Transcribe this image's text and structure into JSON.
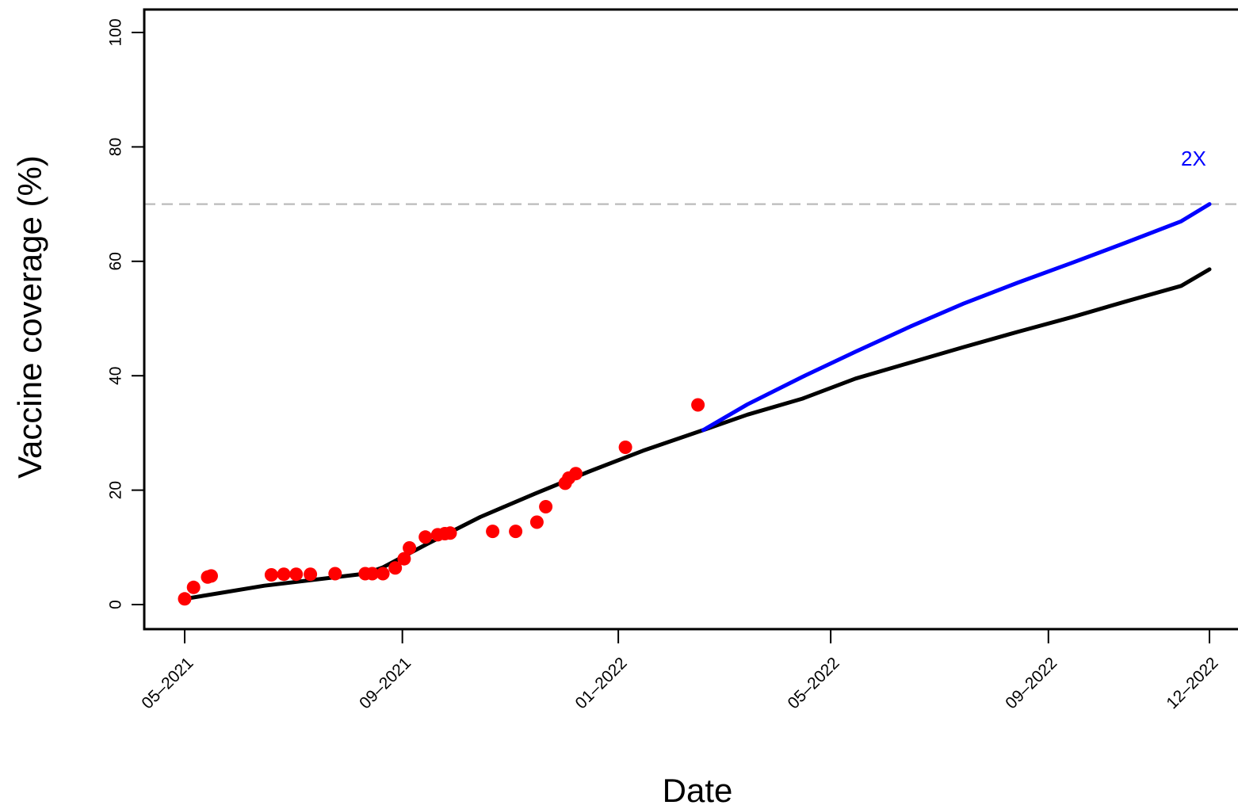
{
  "chart_data": {
    "type": "line",
    "title": "",
    "xlabel": "Date",
    "ylabel": "Vaccine coverage (%)",
    "ylim": [
      0,
      100
    ],
    "xlim": [
      "2021-05-01",
      "2022-12-01"
    ],
    "grid": false,
    "colors": {
      "points": "#ff0000",
      "baseline": "#000000",
      "projection": "#0000ff",
      "threshold": "#bbbbbb"
    },
    "x_tick_labels": [
      "05–2021",
      "09–2021",
      "01–2022",
      "05–2022",
      "09–2022",
      "12–2022"
    ],
    "x_tick_dates": [
      "2021-05-01",
      "2021-09-01",
      "2022-01-01",
      "2022-05-01",
      "2022-09-01",
      "2022-12-01"
    ],
    "y_tick_labels": [
      "0",
      "20",
      "40",
      "60",
      "80",
      "100"
    ],
    "y_ticks": [
      0,
      20,
      40,
      60,
      80,
      100
    ],
    "threshold": {
      "y": 70,
      "style": "dashed"
    },
    "annotations": [
      {
        "text": "2X",
        "x": "2022-11-22",
        "y": 78,
        "color": "#0000ff"
      }
    ],
    "series": [
      {
        "type": "scatter",
        "color": "#ff0000",
        "points": [
          {
            "x": "2021-05-01",
            "y": 1.0
          },
          {
            "x": "2021-05-06",
            "y": 3.0
          },
          {
            "x": "2021-05-14",
            "y": 4.8
          },
          {
            "x": "2021-05-16",
            "y": 5.0
          },
          {
            "x": "2021-06-19",
            "y": 5.2
          },
          {
            "x": "2021-06-26",
            "y": 5.3
          },
          {
            "x": "2021-07-03",
            "y": 5.3
          },
          {
            "x": "2021-07-11",
            "y": 5.3
          },
          {
            "x": "2021-07-25",
            "y": 5.4
          },
          {
            "x": "2021-08-11",
            "y": 5.4
          },
          {
            "x": "2021-08-15",
            "y": 5.4
          },
          {
            "x": "2021-08-21",
            "y": 5.4
          },
          {
            "x": "2021-08-28",
            "y": 6.4
          },
          {
            "x": "2021-09-02",
            "y": 8.0
          },
          {
            "x": "2021-09-05",
            "y": 9.9
          },
          {
            "x": "2021-09-14",
            "y": 11.8
          },
          {
            "x": "2021-09-21",
            "y": 12.2
          },
          {
            "x": "2021-09-25",
            "y": 12.4
          },
          {
            "x": "2021-09-28",
            "y": 12.5
          },
          {
            "x": "2021-10-22",
            "y": 12.8
          },
          {
            "x": "2021-11-04",
            "y": 12.8
          },
          {
            "x": "2021-11-16",
            "y": 14.4
          },
          {
            "x": "2021-11-21",
            "y": 17.1
          },
          {
            "x": "2021-12-02",
            "y": 21.2
          },
          {
            "x": "2021-12-04",
            "y": 22.1
          },
          {
            "x": "2021-12-08",
            "y": 22.9
          },
          {
            "x": "2022-01-05",
            "y": 27.5
          },
          {
            "x": "2022-02-15",
            "y": 34.9
          }
        ]
      },
      {
        "type": "line",
        "color": "#000000",
        "points": [
          {
            "x": "2021-05-01",
            "y": 1.0
          },
          {
            "x": "2021-06-15",
            "y": 3.3
          },
          {
            "x": "2021-08-11",
            "y": 5.4
          },
          {
            "x": "2021-08-21",
            "y": 6.5
          },
          {
            "x": "2021-09-15",
            "y": 10.6
          },
          {
            "x": "2021-10-15",
            "y": 15.3
          },
          {
            "x": "2021-11-15",
            "y": 19.4
          },
          {
            "x": "2021-12-15",
            "y": 23.2
          },
          {
            "x": "2022-01-15",
            "y": 26.9
          },
          {
            "x": "2022-02-18",
            "y": 30.5
          },
          {
            "x": "2022-03-15",
            "y": 33.2
          },
          {
            "x": "2022-04-15",
            "y": 36.0
          },
          {
            "x": "2022-05-15",
            "y": 39.5
          },
          {
            "x": "2022-06-15",
            "y": 42.3
          },
          {
            "x": "2022-07-15",
            "y": 45.0
          },
          {
            "x": "2022-08-15",
            "y": 47.7
          },
          {
            "x": "2022-09-15",
            "y": 50.3
          },
          {
            "x": "2022-10-15",
            "y": 53.0
          },
          {
            "x": "2022-11-15",
            "y": 55.7
          },
          {
            "x": "2022-12-01",
            "y": 58.6
          }
        ]
      },
      {
        "type": "line",
        "name": "2X",
        "color": "#0000ff",
        "points": [
          {
            "x": "2022-02-18",
            "y": 30.5
          },
          {
            "x": "2022-03-15",
            "y": 35.0
          },
          {
            "x": "2022-04-15",
            "y": 39.8
          },
          {
            "x": "2022-05-15",
            "y": 44.2
          },
          {
            "x": "2022-06-15",
            "y": 48.6
          },
          {
            "x": "2022-07-15",
            "y": 52.6
          },
          {
            "x": "2022-08-15",
            "y": 56.3
          },
          {
            "x": "2022-09-15",
            "y": 59.8
          },
          {
            "x": "2022-10-15",
            "y": 63.3
          },
          {
            "x": "2022-11-15",
            "y": 67.0
          },
          {
            "x": "2022-12-01",
            "y": 70.0
          }
        ]
      }
    ]
  }
}
